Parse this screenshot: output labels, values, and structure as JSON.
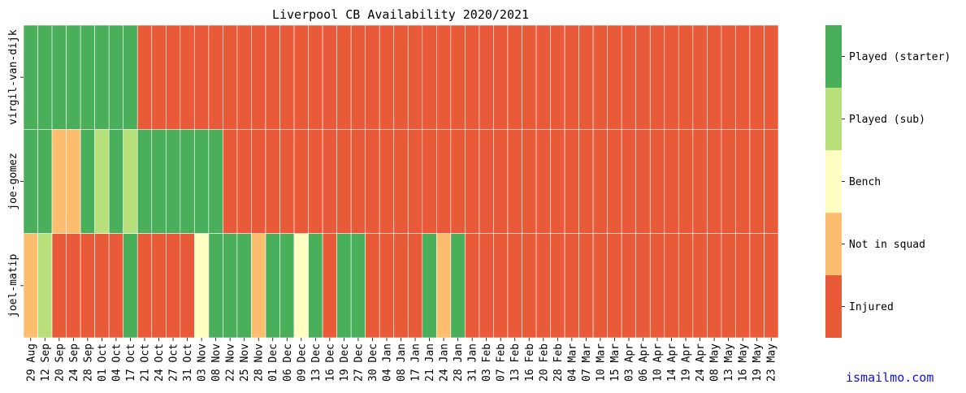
{
  "chart_data": {
    "type": "heatmap",
    "title": "Liverpool CB Availability 2020/2021",
    "xlabel": "",
    "ylabel": "",
    "rows": [
      "virgil-van-dijk",
      "joe-gomez",
      "joel-matip"
    ],
    "columns": [
      "29 Aug",
      "12 Sep",
      "20 Sep",
      "24 Sep",
      "28 Sep",
      "01 Oct",
      "04 Oct",
      "17 Oct",
      "21 Oct",
      "24 Oct",
      "27 Oct",
      "31 Oct",
      "03 Nov",
      "08 Nov",
      "22 Nov",
      "25 Nov",
      "28 Nov",
      "01 Dec",
      "06 Dec",
      "09 Dec",
      "13 Dec",
      "16 Dec",
      "19 Dec",
      "27 Dec",
      "30 Dec",
      "04 Jan",
      "08 Jan",
      "17 Jan",
      "21 Jan",
      "24 Jan",
      "28 Jan",
      "31 Jan",
      "03 Feb",
      "07 Feb",
      "13 Feb",
      "16 Feb",
      "20 Feb",
      "28 Feb",
      "04 Mar",
      "07 Mar",
      "10 Mar",
      "15 Mar",
      "03 Apr",
      "06 Apr",
      "10 Apr",
      "14 Apr",
      "19 Apr",
      "24 Apr",
      "08 May",
      "13 May",
      "16 May",
      "19 May",
      "23 May"
    ],
    "legend": [
      "Played (starter)",
      "Played (sub)",
      "Bench",
      "Not in squad",
      "Injured"
    ],
    "legend_colors": [
      "#4aaf5a",
      "#b8e07a",
      "#ffffc2",
      "#fdbd6f",
      "#e95a38"
    ],
    "values": [
      [
        4,
        4,
        4,
        4,
        4,
        4,
        4,
        4,
        0,
        0,
        0,
        0,
        0,
        0,
        0,
        0,
        0,
        0,
        0,
        0,
        0,
        0,
        0,
        0,
        0,
        0,
        0,
        0,
        0,
        0,
        0,
        0,
        0,
        0,
        0,
        0,
        0,
        0,
        0,
        0,
        0,
        0,
        0,
        0,
        0,
        0,
        0,
        0,
        0,
        0,
        0,
        0,
        0
      ],
      [
        4,
        4,
        1,
        1,
        4,
        3,
        4,
        3,
        4,
        4,
        4,
        4,
        4,
        4,
        0,
        0,
        0,
        0,
        0,
        0,
        0,
        0,
        0,
        0,
        0,
        0,
        0,
        0,
        0,
        0,
        0,
        0,
        0,
        0,
        0,
        0,
        0,
        0,
        0,
        0,
        0,
        0,
        0,
        0,
        0,
        0,
        0,
        0,
        0,
        0,
        0,
        0,
        0
      ],
      [
        1,
        3,
        0,
        0,
        0,
        0,
        0,
        4,
        0,
        0,
        0,
        0,
        2,
        4,
        4,
        4,
        1,
        4,
        4,
        2,
        4,
        0,
        4,
        4,
        0,
        0,
        0,
        0,
        4,
        1,
        4,
        0,
        0,
        0,
        0,
        0,
        0,
        0,
        0,
        0,
        0,
        0,
        0,
        0,
        0,
        0,
        0,
        0,
        0,
        0,
        0,
        0,
        0
      ]
    ],
    "value_meaning": {
      "4": "Played (starter)",
      "3": "Played (sub)",
      "2": "Bench",
      "1": "Not in squad",
      "0": "Injured"
    }
  },
  "watermark": "ismailmo.com"
}
